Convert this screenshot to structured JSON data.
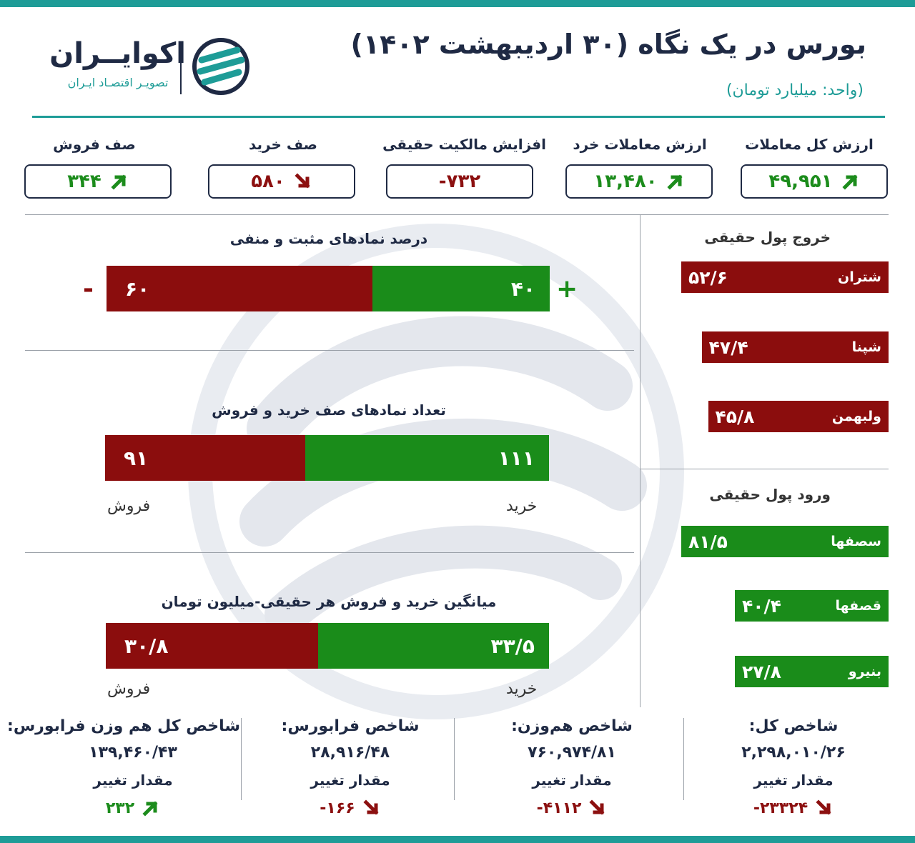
{
  "header": {
    "title": "بورس در یک نگاه (۳۰ اردیبهشت ۱۴۰۲)",
    "unit": "(واحد: میلیارد تومان)"
  },
  "brand": {
    "name": "اکوایــران",
    "subtitle": "تصویـر اقتصـاد ایـران"
  },
  "kpis": [
    {
      "label": "ارزش کل معاملات",
      "value": "۴۹,۹۵۱",
      "trend": "up"
    },
    {
      "label": "ارزش معاملات خرد",
      "value": "۱۳,۴۸۰",
      "trend": "up"
    },
    {
      "label": "افزایش مالکیت حقیقی",
      "value": "-۷۳۲",
      "trend": "none"
    },
    {
      "label": "صف خرید",
      "value": "۵۸۰",
      "trend": "down"
    },
    {
      "label": "صف فروش",
      "value": "۳۴۴",
      "trend": "up"
    }
  ],
  "charts": {
    "positive_negative": {
      "title": "درصد نمادهای مثبت و منفی",
      "plus": "+",
      "minus": "-",
      "positive_value": 40,
      "negative_value": 60,
      "positive_label": "۴۰",
      "negative_label": "۶۰"
    },
    "queues": {
      "title": "تعداد نمادهای صف خرید و فروش",
      "buy_value": 111,
      "sell_value": 91,
      "buy_label": "۱۱۱",
      "sell_label": "۹۱",
      "buy_caption": "خرید",
      "sell_caption": "فروش"
    },
    "average_per_person": {
      "title": "میانگین خرید و فروش هر حقیقی-میلیون تومان",
      "buy_value": 33.5,
      "sell_value": 30.8,
      "buy_label": "۳۳/۵",
      "sell_label": "۳۰/۸",
      "buy_caption": "خرید",
      "sell_caption": "فروش"
    }
  },
  "money_flow": {
    "outflow_title": "خروج پول حقیقی",
    "outflow": [
      {
        "name": "شتران",
        "value": 52.6,
        "label": "۵۲/۶"
      },
      {
        "name": "شپنا",
        "value": 47.4,
        "label": "۴۷/۴"
      },
      {
        "name": "ولبهمن",
        "value": 45.8,
        "label": "۴۵/۸"
      }
    ],
    "inflow_title": "ورود پول حقیقی",
    "inflow": [
      {
        "name": "سصفها",
        "value": 81.5,
        "label": "۸۱/۵"
      },
      {
        "name": "قصفها",
        "value": 40.4,
        "label": "۴۰/۴"
      },
      {
        "name": "بنیرو",
        "value": 27.8,
        "label": "۲۷/۸"
      }
    ]
  },
  "indices": [
    {
      "label": "شاخص کل:",
      "value": "۲,۲۹۸,۰۱۰/۲۶",
      "change_label": "مقدار تغییر",
      "change": "-۲۳۳۲۴",
      "trend": "down"
    },
    {
      "label": "شاخص هم‌وزن:",
      "value": "۷۶۰,۹۷۴/۸۱",
      "change_label": "مقدار تغییر",
      "change": "-۴۱۱۲",
      "trend": "down"
    },
    {
      "label": "شاخص فرابورس:",
      "value": "۲۸,۹۱۶/۴۸",
      "change_label": "مقدار تغییر",
      "change": "-۱۶۶",
      "trend": "down"
    },
    {
      "label": "شاخص کل هم وزن فرابورس:",
      "value": "۱۳۹,۴۶۰/۴۳",
      "change_label": "مقدار تغییر",
      "change": "۲۳۲",
      "trend": "up"
    }
  ],
  "colors": {
    "accent": "#1e9c97",
    "navy": "#1f2a44",
    "green": "#1a8c1a",
    "red": "#8b0d0d"
  }
}
